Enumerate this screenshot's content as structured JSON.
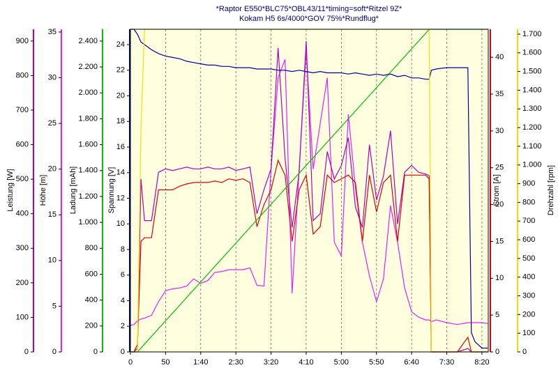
{
  "chart_data": {
    "type": "line",
    "title": "*Raptor E550*BLC75*OBL43/11*timing=soft*Ritzel 9Z*",
    "subtitle": "Kokam H5 6s/4000*GOV 75%*Rundflug*",
    "background": "#ffffe0",
    "grid": true,
    "x": [
      0,
      5,
      10,
      15,
      20,
      30,
      40,
      50,
      60,
      70,
      80,
      90,
      100,
      110,
      120,
      130,
      140,
      150,
      160,
      170,
      180,
      190,
      200,
      210,
      220,
      230,
      240,
      250,
      260,
      270,
      280,
      290,
      300,
      310,
      320,
      330,
      340,
      350,
      360,
      370,
      380,
      390,
      400,
      410,
      420,
      425,
      428,
      435,
      450,
      465,
      480,
      485,
      490,
      500,
      508
    ],
    "xlim": [
      0,
      509
    ],
    "xticks": [
      0,
      50,
      {
        "value": 100,
        "label": "1:40"
      },
      {
        "value": 150,
        "label": "2:30"
      },
      {
        "value": 200,
        "label": "3:20"
      },
      {
        "value": 250,
        "label": "4:10"
      },
      {
        "value": 300,
        "label": "5:00"
      },
      {
        "value": 350,
        "label": "5:50"
      },
      {
        "value": 400,
        "label": "6:40"
      },
      {
        "value": 450,
        "label": "7:30"
      },
      {
        "value": 500,
        "label": "8:20"
      }
    ],
    "series": [
      {
        "name": "Leistung [W]",
        "color": "#b000c0",
        "side": "left",
        "ylim": [
          0,
          934
        ],
        "yticks": [
          0,
          100,
          200,
          300,
          400,
          500,
          600,
          700,
          800,
          900
        ],
        "values": [
          0,
          0,
          10,
          500,
          380,
          380,
          520,
          530,
          525,
          530,
          535,
          530,
          530,
          535,
          530,
          530,
          535,
          525,
          530,
          535,
          400,
          470,
          530,
          880,
          560,
          360,
          520,
          900,
          380,
          400,
          580,
          500,
          540,
          620,
          420,
          360,
          600,
          440,
          510,
          640,
          370,
          520,
          540,
          520,
          515,
          510,
          0,
          0,
          0,
          0,
          10,
          0,
          0,
          0,
          0
        ]
      },
      {
        "name": "Höhe [m]",
        "color": "#e020ff",
        "side": "left",
        "ylim": [
          0,
          35.3
        ],
        "yticks": [
          0,
          5,
          10,
          15,
          20,
          25,
          30,
          35
        ],
        "values": [
          2.9,
          3.0,
          3.4,
          3.6,
          3.7,
          4.0,
          5.5,
          6.7,
          6.9,
          7.0,
          7.2,
          8.0,
          7.5,
          7.8,
          8.7,
          8.8,
          9.0,
          9.0,
          9.0,
          9.2,
          7.3,
          7.2,
          20,
          30,
          32,
          6.4,
          20,
          33,
          20,
          25,
          30,
          12,
          10.5,
          26,
          18,
          12,
          8.3,
          5.5,
          8.0,
          16,
          12,
          7,
          4.4,
          3.8,
          3.5,
          3.5,
          3.3,
          3.5,
          3.2,
          3.0,
          3.2,
          3.2,
          3.2,
          3.2,
          3.1
        ]
      },
      {
        "name": "Ladung [mAh]",
        "color": "#00c000",
        "side": "left",
        "ylim": [
          0,
          2491
        ],
        "yticks": [
          0,
          200,
          400,
          600,
          800,
          {
            "value": 1000,
            "label": "1.000"
          },
          {
            "value": 1200,
            "label": "1.200"
          },
          {
            "value": 1400,
            "label": "1.400"
          },
          {
            "value": 1600,
            "label": "1.600"
          },
          {
            "value": 1800,
            "label": "1.800"
          },
          {
            "value": 2000,
            "label": "2.000"
          },
          {
            "value": 2200,
            "label": "2.200"
          },
          {
            "value": 2400,
            "label": "2.400"
          }
        ],
        "values": [
          0,
          0,
          0,
          30,
          60,
          120,
          180,
          240,
          300,
          360,
          420,
          480,
          540,
          600,
          660,
          720,
          780,
          840,
          900,
          960,
          1020,
          1080,
          1140,
          1200,
          1260,
          1320,
          1380,
          1440,
          1500,
          1560,
          1620,
          1680,
          1740,
          1800,
          1860,
          1920,
          1980,
          2040,
          2100,
          2160,
          2220,
          2280,
          2340,
          2400,
          2460,
          2491,
          2491,
          2491,
          2491,
          2491,
          2491,
          2491,
          2491,
          2491,
          2491
        ]
      },
      {
        "name": "Spannung [V]",
        "color": "#0000a0",
        "side": "left",
        "ylim": [
          0,
          25.2
        ],
        "yticks": [
          0,
          2,
          4,
          6,
          8,
          10,
          12,
          14,
          16,
          18,
          20,
          22,
          24
        ],
        "values": [
          25.2,
          25.2,
          24.8,
          24.2,
          24.0,
          23.6,
          23.3,
          23.1,
          23.0,
          22.9,
          22.7,
          22.6,
          22.5,
          22.4,
          22.4,
          22.3,
          22.3,
          22.2,
          22.2,
          22.2,
          22.1,
          22.1,
          22.1,
          22.0,
          22.0,
          21.9,
          22.0,
          21.9,
          21.8,
          21.9,
          21.8,
          21.8,
          21.8,
          21.7,
          21.8,
          21.7,
          21.6,
          21.7,
          21.6,
          21.7,
          21.5,
          21.6,
          21.4,
          21.4,
          21.3,
          21.3,
          22.0,
          22.1,
          22.2,
          22.2,
          22.2,
          1.5,
          0.8,
          0.3,
          0.3
        ]
      },
      {
        "name": "Strom [A]",
        "color": "#e00000",
        "side": "right",
        "ylim": [
          0,
          43.8
        ],
        "yticks": [
          0,
          5,
          10,
          15,
          20,
          25,
          30,
          35,
          40
        ],
        "values": [
          0,
          0,
          1,
          15,
          15.5,
          15.5,
          22,
          22,
          22,
          22.5,
          22.8,
          23,
          23,
          23,
          23.2,
          23,
          23.5,
          23.3,
          23.5,
          23,
          17,
          20,
          22,
          26,
          24,
          15,
          22,
          24,
          16,
          17,
          24,
          23,
          23.5,
          24,
          23,
          15,
          24,
          19,
          23,
          24,
          15,
          24,
          24,
          24,
          24,
          23.5,
          0,
          0,
          0,
          0,
          2,
          0,
          0,
          0,
          0
        ]
      },
      {
        "name": "Drehzahl [rpm]",
        "color": "#f0e000",
        "side": "right",
        "ylim": [
          0,
          1726
        ],
        "yticks": [
          0,
          100,
          200,
          300,
          400,
          500,
          600,
          700,
          800,
          900,
          {
            "value": 1000,
            "label": "1.000"
          },
          {
            "value": 1100,
            "label": "1.100"
          },
          {
            "value": 1200,
            "label": "1.200"
          },
          {
            "value": 1300,
            "label": "1.300"
          },
          {
            "value": 1400,
            "label": "1.400"
          },
          {
            "value": 1500,
            "label": "1.500"
          },
          {
            "value": 1600,
            "label": "1.600"
          },
          {
            "value": 1700,
            "label": "1.700"
          }
        ],
        "values": [
          0,
          0,
          0,
          1200,
          1726,
          1726,
          1726,
          1726,
          1726,
          1726,
          1726,
          1726,
          1726,
          1726,
          1726,
          1726,
          1726,
          1726,
          1726,
          1726,
          1726,
          1726,
          1726,
          1726,
          1726,
          1726,
          1726,
          1726,
          1726,
          1726,
          1726,
          1726,
          1726,
          1726,
          1726,
          1726,
          1726,
          1726,
          1726,
          1726,
          1726,
          1726,
          1726,
          1726,
          1726,
          1726,
          0,
          0,
          0,
          0,
          0,
          0,
          0,
          0,
          0
        ]
      }
    ]
  }
}
